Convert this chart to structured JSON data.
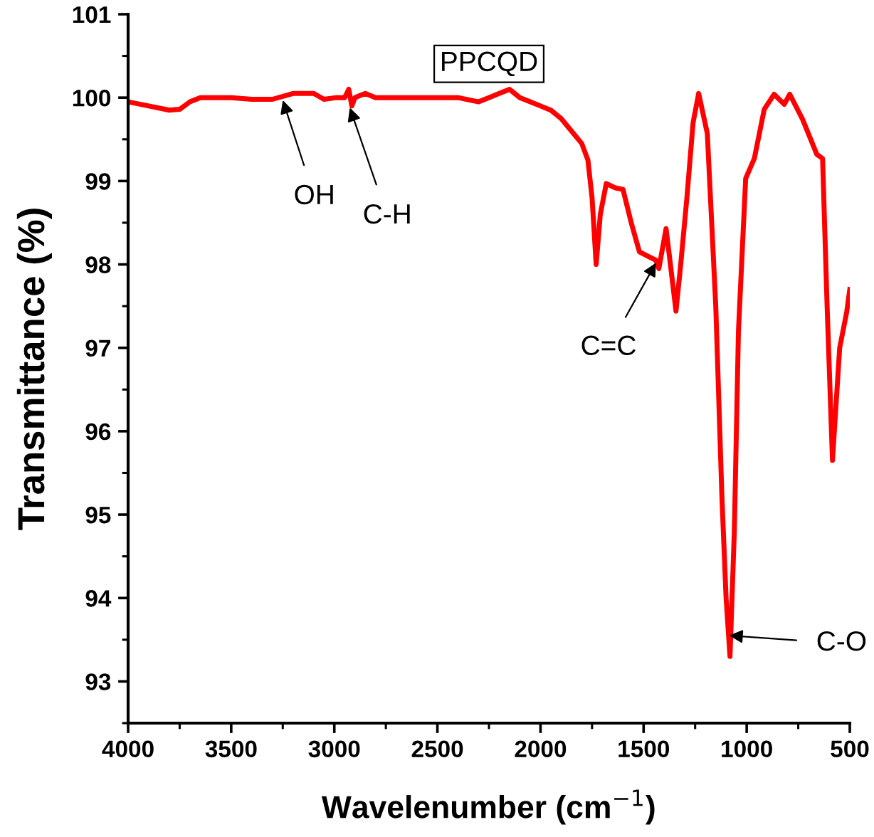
{
  "chart_data": {
    "type": "line",
    "xlabel": "Wavelenumber (cm$^{−1}$)",
    "ylabel": "Transmittance (%)",
    "xlim": [
      4000,
      500
    ],
    "xticks": [
      4000,
      3500,
      3000,
      2500,
      2000,
      1500,
      1000,
      500
    ],
    "ylim": [
      92.5,
      101
    ],
    "yticks": [
      93,
      94,
      95,
      96,
      97,
      98,
      99,
      100,
      101
    ],
    "grid": false,
    "marker": "none",
    "line_style": "solid",
    "series": [
      {
        "color": "#ff0000",
        "x": [
          4000,
          3900,
          3800,
          3750,
          3700,
          3650,
          3500,
          3400,
          3300,
          3200,
          3100,
          3050,
          2990,
          2950,
          2930,
          2915,
          2900,
          2880,
          2850,
          2800,
          2700,
          2550,
          2400,
          2300,
          2250,
          2200,
          2150,
          2100,
          2050,
          2000,
          1950,
          1900,
          1850,
          1800,
          1770,
          1750,
          1730,
          1710,
          1681,
          1640,
          1600,
          1560,
          1520,
          1480,
          1440,
          1426,
          1391,
          1370,
          1343,
          1320,
          1290,
          1260,
          1233,
          1191,
          1150,
          1120,
          1100,
          1081,
          1060,
          1040,
          1005,
          963,
          915,
          867,
          818,
          791,
          729,
          660,
          632,
          610,
          584,
          549,
          515,
          500
        ],
        "values": [
          99.95,
          99.9,
          99.85,
          99.86,
          99.95,
          100.0,
          100.0,
          99.98,
          99.98,
          100.05,
          100.05,
          99.98,
          100.0,
          100.0,
          100.1,
          99.9,
          100.0,
          100.02,
          100.05,
          100.0,
          100.0,
          100.0,
          100.0,
          99.95,
          100.0,
          100.05,
          100.1,
          100.0,
          99.95,
          99.9,
          99.85,
          99.75,
          99.6,
          99.45,
          99.25,
          98.8,
          98.0,
          98.6,
          98.97,
          98.92,
          98.9,
          98.5,
          98.15,
          98.1,
          98.05,
          97.95,
          98.43,
          98.0,
          97.44,
          98.0,
          98.8,
          99.7,
          100.05,
          99.57,
          97.5,
          95.2,
          94.0,
          93.3,
          94.8,
          97.2,
          99.03,
          99.27,
          99.86,
          100.04,
          99.92,
          100.04,
          99.74,
          99.32,
          99.27,
          97.5,
          95.65,
          97.0,
          97.43,
          97.7
        ]
      }
    ],
    "annotations": [
      "PPCQD",
      {
        "text": "OH",
        "x": 3250,
        "y": 99.97
      },
      {
        "text": "C-H",
        "x": 2925,
        "y": 99.88
      },
      {
        "text": "C=C",
        "x": 1440,
        "y": 98.02
      },
      {
        "text": "C-O",
        "x": 1085,
        "y": 93.55
      }
    ]
  }
}
